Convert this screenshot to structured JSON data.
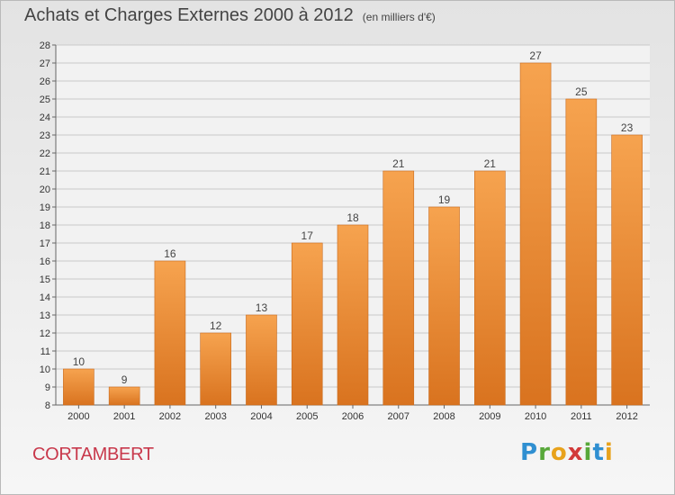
{
  "title": "Achats et Charges Externes 2000 à 2012",
  "subtitle": "(en milliers d'€)",
  "commune": "CORTAMBERT",
  "logo": {
    "text": "Proxiti",
    "letters": [
      {
        "ch": "P",
        "color": "#2f8fd1"
      },
      {
        "ch": "r",
        "color": "#58a83a"
      },
      {
        "ch": "o",
        "color": "#e8a21c"
      },
      {
        "ch": "x",
        "color": "#d23a3a"
      },
      {
        "ch": "i",
        "color": "#58a83a"
      },
      {
        "ch": "t",
        "color": "#2f8fd1"
      },
      {
        "ch": "i",
        "color": "#e8a21c"
      }
    ]
  },
  "colors": {
    "bar_top": "#f6a34f",
    "bar_bottom": "#d9731f",
    "grid": "#c9c9c9",
    "commune": "#c8384b"
  },
  "chart_data": {
    "type": "bar",
    "categories": [
      "2000",
      "2001",
      "2002",
      "2003",
      "2004",
      "2005",
      "2006",
      "2007",
      "2008",
      "2009",
      "2010",
      "2011",
      "2012"
    ],
    "values": [
      10,
      9,
      16,
      12,
      13,
      17,
      18,
      21,
      19,
      21,
      27,
      25,
      23
    ],
    "title": "Achats et Charges Externes 2000 à 2012",
    "xlabel": "",
    "ylabel": "",
    "ylim": [
      8,
      28
    ],
    "yticks": [
      8,
      9,
      10,
      11,
      12,
      13,
      14,
      15,
      16,
      17,
      18,
      19,
      20,
      21,
      22,
      23,
      24,
      25,
      26,
      27,
      28
    ],
    "grid": true,
    "data_labels": true
  }
}
